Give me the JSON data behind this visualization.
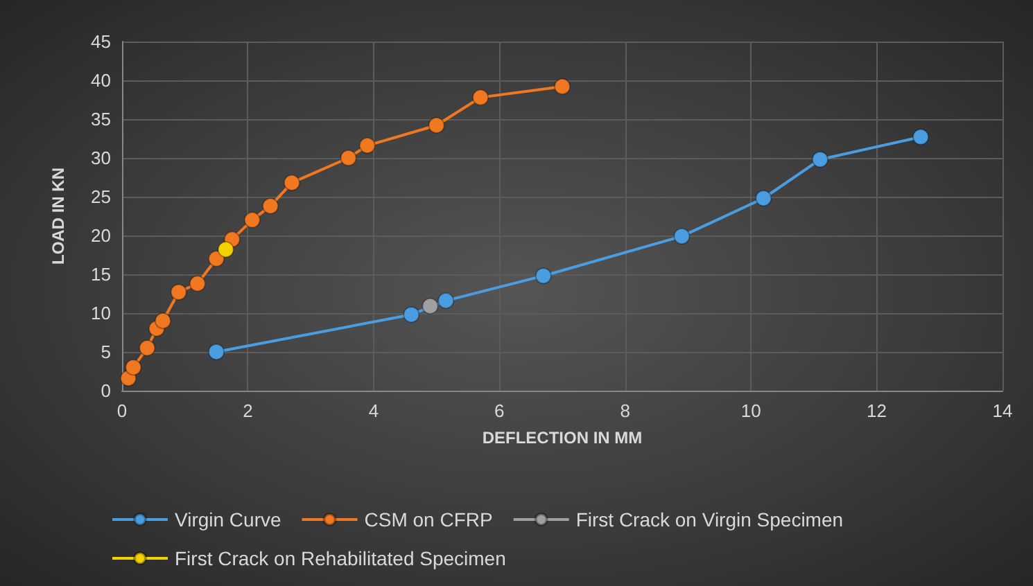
{
  "chart_data": {
    "type": "line",
    "xlabel": "DEFLECTION IN MM",
    "ylabel": "LOAD IN KN",
    "xlim": [
      0,
      14
    ],
    "xticks": [
      0,
      2,
      4,
      6,
      8,
      10,
      12,
      14
    ],
    "ylim": [
      0,
      45
    ],
    "yticks": [
      0,
      5,
      10,
      15,
      20,
      25,
      30,
      35,
      40,
      45
    ],
    "grid": true,
    "legend": "bottom",
    "marker": "circle",
    "line_style": "solid",
    "series": [
      {
        "name": "Virgin Curve",
        "color": "#4a9de0",
        "x": [
          1.5,
          4.6,
          5.15,
          6.7,
          8.9,
          10.2,
          11.1,
          12.7
        ],
        "values": [
          5,
          9.8,
          11.6,
          14.8,
          19.9,
          24.8,
          29.8,
          32.7
        ]
      },
      {
        "name": "CSM on CFRP",
        "color": "#f07820",
        "x": [
          0.1,
          0.18,
          0.4,
          0.55,
          0.65,
          0.9,
          1.2,
          1.5,
          1.75,
          2.07,
          2.36,
          2.7,
          3.6,
          3.9,
          5,
          5.7,
          7
        ],
        "values": [
          1.6,
          3,
          5.5,
          8,
          9,
          12.7,
          13.8,
          17,
          19.5,
          22,
          23.8,
          26.8,
          30,
          31.6,
          34.2,
          37.8,
          39.2
        ]
      },
      {
        "name": "First Crack on Virgin Specimen",
        "color": "#a0a0a0",
        "x": [
          4.9
        ],
        "values": [
          10.9
        ]
      },
      {
        "name": "First Crack on Rehabilitated Specimen",
        "color": "#f5d000",
        "x": [
          1.65
        ],
        "values": [
          18.2
        ]
      }
    ]
  }
}
